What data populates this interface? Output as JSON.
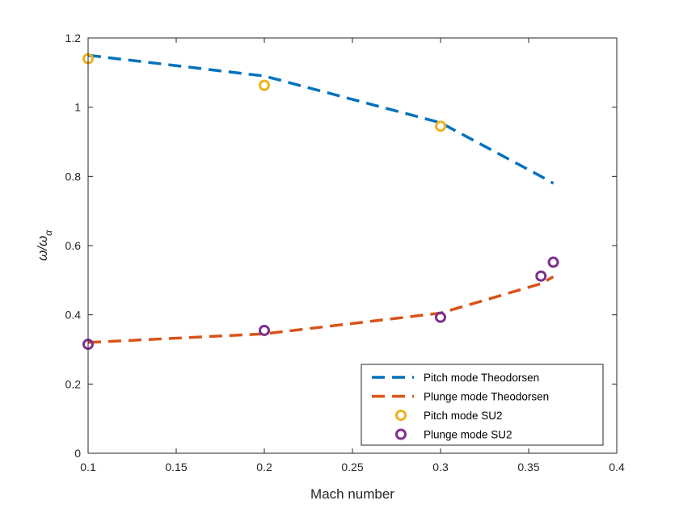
{
  "chart_data": {
    "type": "line",
    "xlabel": "Mach number",
    "ylabel": "ω/ω",
    "ylabel_subscript": "α",
    "xlim": [
      0.1,
      0.4
    ],
    "ylim": [
      0,
      1.2
    ],
    "xticks": [
      "0.1",
      "0.15",
      "0.2",
      "0.25",
      "0.3",
      "0.35",
      "0.4"
    ],
    "yticks": [
      "0",
      "0.2",
      "0.4",
      "0.6",
      "0.8",
      "1",
      "1.2"
    ],
    "legend_position": "bottom-right",
    "series": [
      {
        "name": "Pitch mode Theodorsen",
        "kind": "line",
        "color": "#0072BD",
        "x": [
          0.1,
          0.2,
          0.3,
          0.357,
          0.364
        ],
        "y": [
          1.15,
          1.09,
          0.955,
          0.8,
          0.78
        ]
      },
      {
        "name": "Plunge mode Theodorsen",
        "kind": "line",
        "color": "#D95319",
        "x": [
          0.1,
          0.2,
          0.3,
          0.357,
          0.364
        ],
        "y": [
          0.32,
          0.345,
          0.405,
          0.49,
          0.51
        ]
      },
      {
        "name": "Pitch mode SU2",
        "kind": "marker",
        "color": "#EDB120",
        "x": [
          0.1,
          0.2,
          0.3
        ],
        "y": [
          1.14,
          1.063,
          0.945
        ]
      },
      {
        "name": "Plunge mode SU2",
        "kind": "marker",
        "color": "#7E2F8E",
        "x": [
          0.1,
          0.2,
          0.3,
          0.357,
          0.364
        ],
        "y": [
          0.315,
          0.355,
          0.393,
          0.512,
          0.552
        ]
      }
    ]
  }
}
